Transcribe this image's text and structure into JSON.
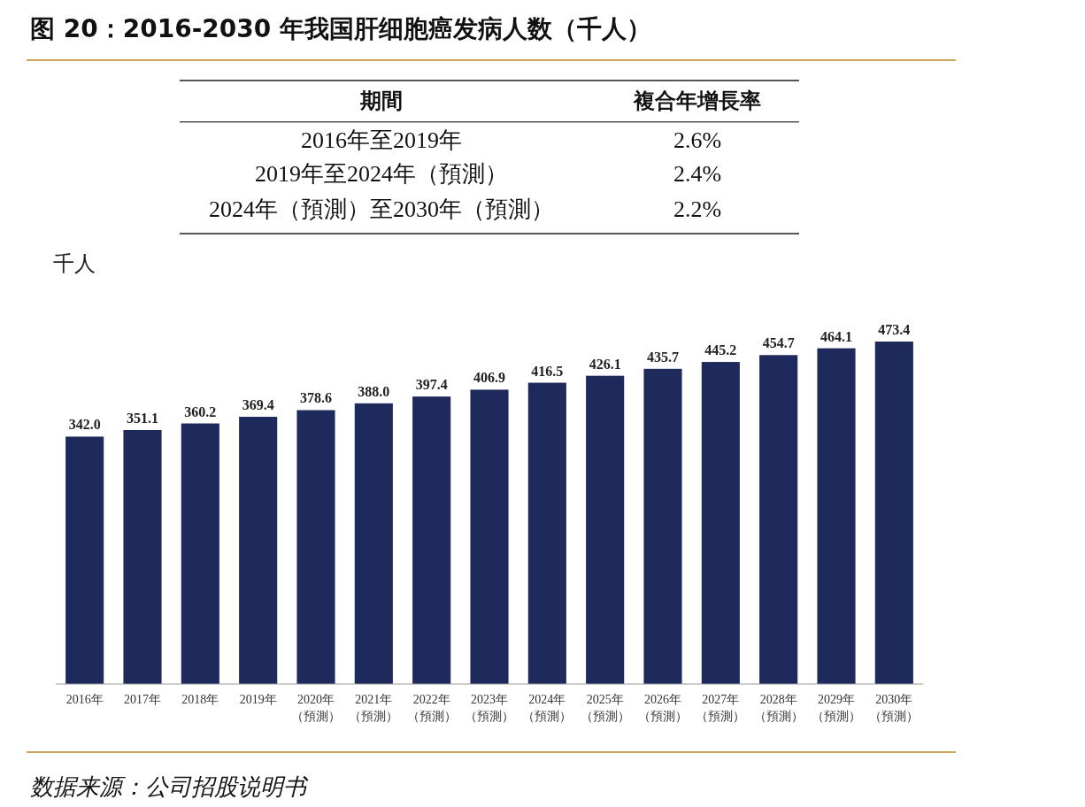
{
  "chart_data": {
    "type": "bar",
    "title": "图 20：2016-2030 年我国肝细胞癌发病人数（千人）",
    "ylabel": "千人",
    "categories": [
      "2016年",
      "2017年",
      "2018年",
      "2019年",
      "2020年（預測）",
      "2021年（預測）",
      "2022年（預測）",
      "2023年（預測）",
      "2024年（預測）",
      "2025年（預測）",
      "2026年（預測）",
      "2027年（預測）",
      "2028年（預測）",
      "2029年（預測）",
      "2030年（預測）"
    ],
    "values": [
      342.0,
      351.1,
      360.2,
      369.4,
      378.6,
      388.0,
      397.4,
      406.9,
      416.5,
      426.1,
      435.7,
      445.2,
      454.7,
      464.1,
      473.4
    ],
    "value_labels": [
      "342.0",
      "351.1",
      "360.2",
      "369.4",
      "378.6",
      "388.0",
      "397.4",
      "406.9",
      "416.5",
      "426.1",
      "435.7",
      "445.2",
      "454.7",
      "464.1",
      "473.4"
    ],
    "color": "#1f2a5c",
    "annotations": [
      "期間",
      "複合年增長率",
      "2016年至2019年",
      "2.6%",
      "2019年至2024年（預測）",
      "2.4%",
      "2024年（預測）至2030年（預測）",
      "2.2%",
      "数据来源：公司招股说明书"
    ]
  }
}
